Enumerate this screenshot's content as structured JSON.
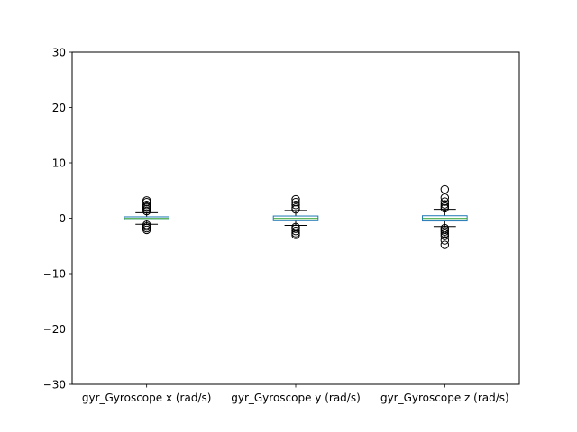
{
  "chart_data": {
    "type": "box",
    "title": "",
    "xlabel": "",
    "ylabel": "",
    "ylim": [
      -30,
      30
    ],
    "yticks": [
      -30,
      -20,
      -10,
      0,
      10,
      20,
      30
    ],
    "ytick_labels": [
      "−30",
      "−20",
      "−10",
      "0",
      "10",
      "20",
      "30"
    ],
    "grid": false,
    "legend": "none",
    "colors": {
      "box": "#1f77b4",
      "median": "#2ca02c",
      "whisker": "#000000",
      "flier": "#000000"
    },
    "categories": [
      "gyr_Gyroscope x (rad/s)",
      "gyr_Gyroscope y (rad/s)",
      "gyr_Gyroscope z (rad/s)"
    ],
    "boxes": [
      {
        "whislo": -1.1,
        "q1": -0.3,
        "med": -0.05,
        "q3": 0.25,
        "whishi": 1.0,
        "fliers": [
          1.3,
          1.6,
          1.9,
          2.1,
          2.4,
          2.9,
          3.2,
          -1.2,
          -1.5,
          -1.8,
          -2.1
        ]
      },
      {
        "whislo": -1.3,
        "q1": -0.45,
        "med": -0.05,
        "q3": 0.4,
        "whishi": 1.4,
        "fliers": [
          1.6,
          1.9,
          2.4,
          2.9,
          3.4,
          -1.6,
          -1.9,
          -2.3,
          -2.7,
          -3.0
        ]
      },
      {
        "whislo": -1.5,
        "q1": -0.5,
        "med": -0.05,
        "q3": 0.45,
        "whishi": 1.6,
        "fliers": [
          1.8,
          2.1,
          2.5,
          3.0,
          3.7,
          5.2,
          -1.8,
          -2.1,
          -2.4,
          -2.8,
          -3.2,
          -4.0,
          -4.8
        ]
      }
    ]
  }
}
